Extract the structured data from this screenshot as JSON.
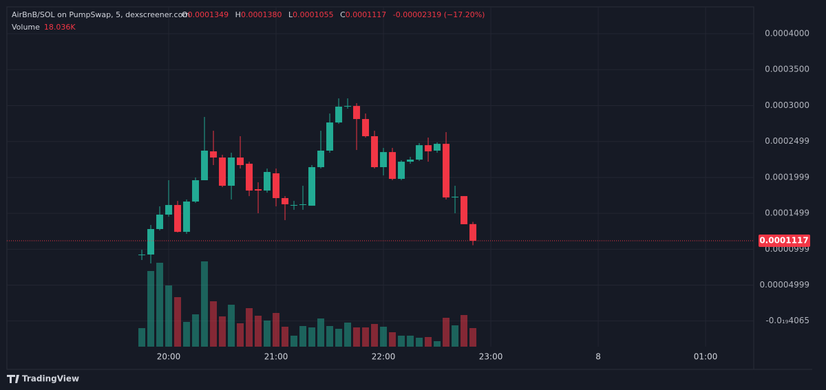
{
  "chart_data": {
    "type": "candlestick",
    "header": {
      "symbol": "AirBnB/SOL on PumpSwap, 5, dexscreener.com",
      "o_label": "O",
      "o": "0.0001349",
      "h_label": "H",
      "h": "0.0001380",
      "l_label": "L",
      "l": "0.0001055",
      "c_label": "C",
      "c": "0.0001117",
      "change": "-0.00002319 (−17.20%)",
      "volume_label": "Volume",
      "volume": "18.036K"
    },
    "x": [
      1185,
      1190,
      1195,
      1200,
      1205,
      1210,
      1215,
      1220,
      1225,
      1230,
      1235,
      1240,
      1245,
      1250,
      1255,
      1260,
      1265,
      1270,
      1275,
      1280,
      1285,
      1290,
      1295,
      1300,
      1305,
      1310,
      1315,
      1320,
      1325,
      1330,
      1335,
      1340,
      1345,
      1350,
      1355,
      1360,
      1365,
      1370
    ],
    "open": [
      9.25e-05,
      9.25e-05,
      0.000128,
      0.0001481,
      0.0001615,
      0.0001241,
      0.0001663,
      0.000196,
      0.0002362,
      0.0002276,
      0.0001883,
      0.0002276,
      0.000219,
      0.0001835,
      0.0001816,
      0.0002056,
      0.0001711,
      0.0001615,
      0.0001615,
      0.0001605,
      0.0002142,
      0.0002372,
      0.0002764,
      0.0002985,
      0.0002994,
      0.0002812,
      0.0002573,
      0.0002142,
      0.0002352,
      0.0001979,
      0.0002218,
      0.0002247,
      0.0002448,
      0.0002372,
      0.0002467,
      0.000172,
      0.0001739,
      0.0001349
    ],
    "high": [
      9.92e-05,
      0.0001337,
      0.0001596,
      0.000196,
      0.0001672,
      0.0001692,
      0.0001998,
      0.0002841,
      0.0002649,
      0.0002314,
      0.0002343,
      0.0002573,
      0.0002218,
      0.0001931,
      0.0002123,
      0.0002123,
      0.0001739,
      0.0001672,
      0.0001883,
      0.0002171,
      0.0002649,
      0.0002889,
      0.00031,
      0.00031,
      0.0003033,
      0.0002889,
      0.0002649,
      0.000241,
      0.000241,
      0.0002238,
      0.0002285,
      0.0002477,
      0.0002554,
      0.0002487,
      0.000263,
      0.0001883,
      0.0001739,
      0.000138
    ],
    "low": [
      8.49e-05,
      8.01e-05,
      0.0001261,
      0.0001452,
      0.0001232,
      0.0001213,
      0.0001644,
      0.000196,
      0.0002171,
      0.0001864,
      0.0001692,
      0.0002123,
      0.0001739,
      0.00015,
      0.0001787,
      0.0001596,
      0.0001404,
      0.0001548,
      0.0001548,
      0.0001605,
      0.0002123,
      0.0002343,
      0.0002745,
      0.0002956,
      0.0002381,
      0.0002554,
      0.0002123,
      0.0002027,
      0.000196,
      0.000196,
      0.000219,
      0.0002228,
      0.0002218,
      0.0002343,
      0.0001692,
      0.00015,
      0.0001347,
      0.0001055
    ],
    "close": [
      9.25e-05,
      0.000128,
      0.0001481,
      0.0001615,
      0.0001241,
      0.0001663,
      0.000196,
      0.0002372,
      0.0002276,
      0.0001883,
      0.0002276,
      0.0002171,
      0.0001816,
      0.0001816,
      0.0002075,
      0.0001711,
      0.0001625,
      0.0001615,
      0.0001625,
      0.0002142,
      0.0002372,
      0.0002764,
      0.0002985,
      0.0002994,
      0.0002812,
      0.0002573,
      0.0002142,
      0.0002352,
      0.0001979,
      0.0002218,
      0.0002247,
      0.0002448,
      0.0002362,
      0.0002467,
      0.000172,
      0.000173,
      0.0001347,
      0.0001117
    ],
    "volume": [
      18000,
      73480,
      81500,
      59450,
      48100,
      24050,
      31400,
      82830,
      44090,
      29390,
      40750,
      22710,
      37410,
      30060,
      25380,
      32730,
      19370,
      10690,
      20040,
      18700,
      27390,
      20040,
      17370,
      23380,
      18700,
      18700,
      22040,
      19370,
      14030,
      10690,
      10690,
      8680,
      9350,
      5340,
      28060,
      20710,
      30730,
      18036
    ],
    "last_price": 0.0001117,
    "xlim": [
      1109.6,
      1526.9
    ],
    "xticks": [
      {
        "value": 1200,
        "label": "20:00"
      },
      {
        "value": 1260,
        "label": "21:00"
      },
      {
        "value": 1320,
        "label": "22:00"
      },
      {
        "value": 1380,
        "label": "23:00"
      },
      {
        "value": 1440,
        "label": "8"
      },
      {
        "value": 1500,
        "label": "01:00"
      }
    ],
    "ylim": [
      -3.58e-05,
      0.0004374
    ],
    "yticks": [
      {
        "value": 0.0004,
        "label": "0.0004000"
      },
      {
        "value": 0.00035,
        "label": "0.0003500"
      },
      {
        "value": 0.0003,
        "label": "0.0003000"
      },
      {
        "value": 0.0002499,
        "label": "0.0002499"
      },
      {
        "value": 0.0001999,
        "label": "0.0001999"
      },
      {
        "value": 0.0001499,
        "label": "0.0001499"
      },
      {
        "value": 9.99e-05,
        "label": "0.0000999"
      },
      {
        "value": 4.99e-05,
        "label": "0.00004999"
      },
      {
        "value": -4.065e-20,
        "label": "-0.0₁₉4065"
      }
    ],
    "up_color": "#22ab94",
    "down_color": "#f23645",
    "grid": true,
    "brand": "TradingView"
  }
}
